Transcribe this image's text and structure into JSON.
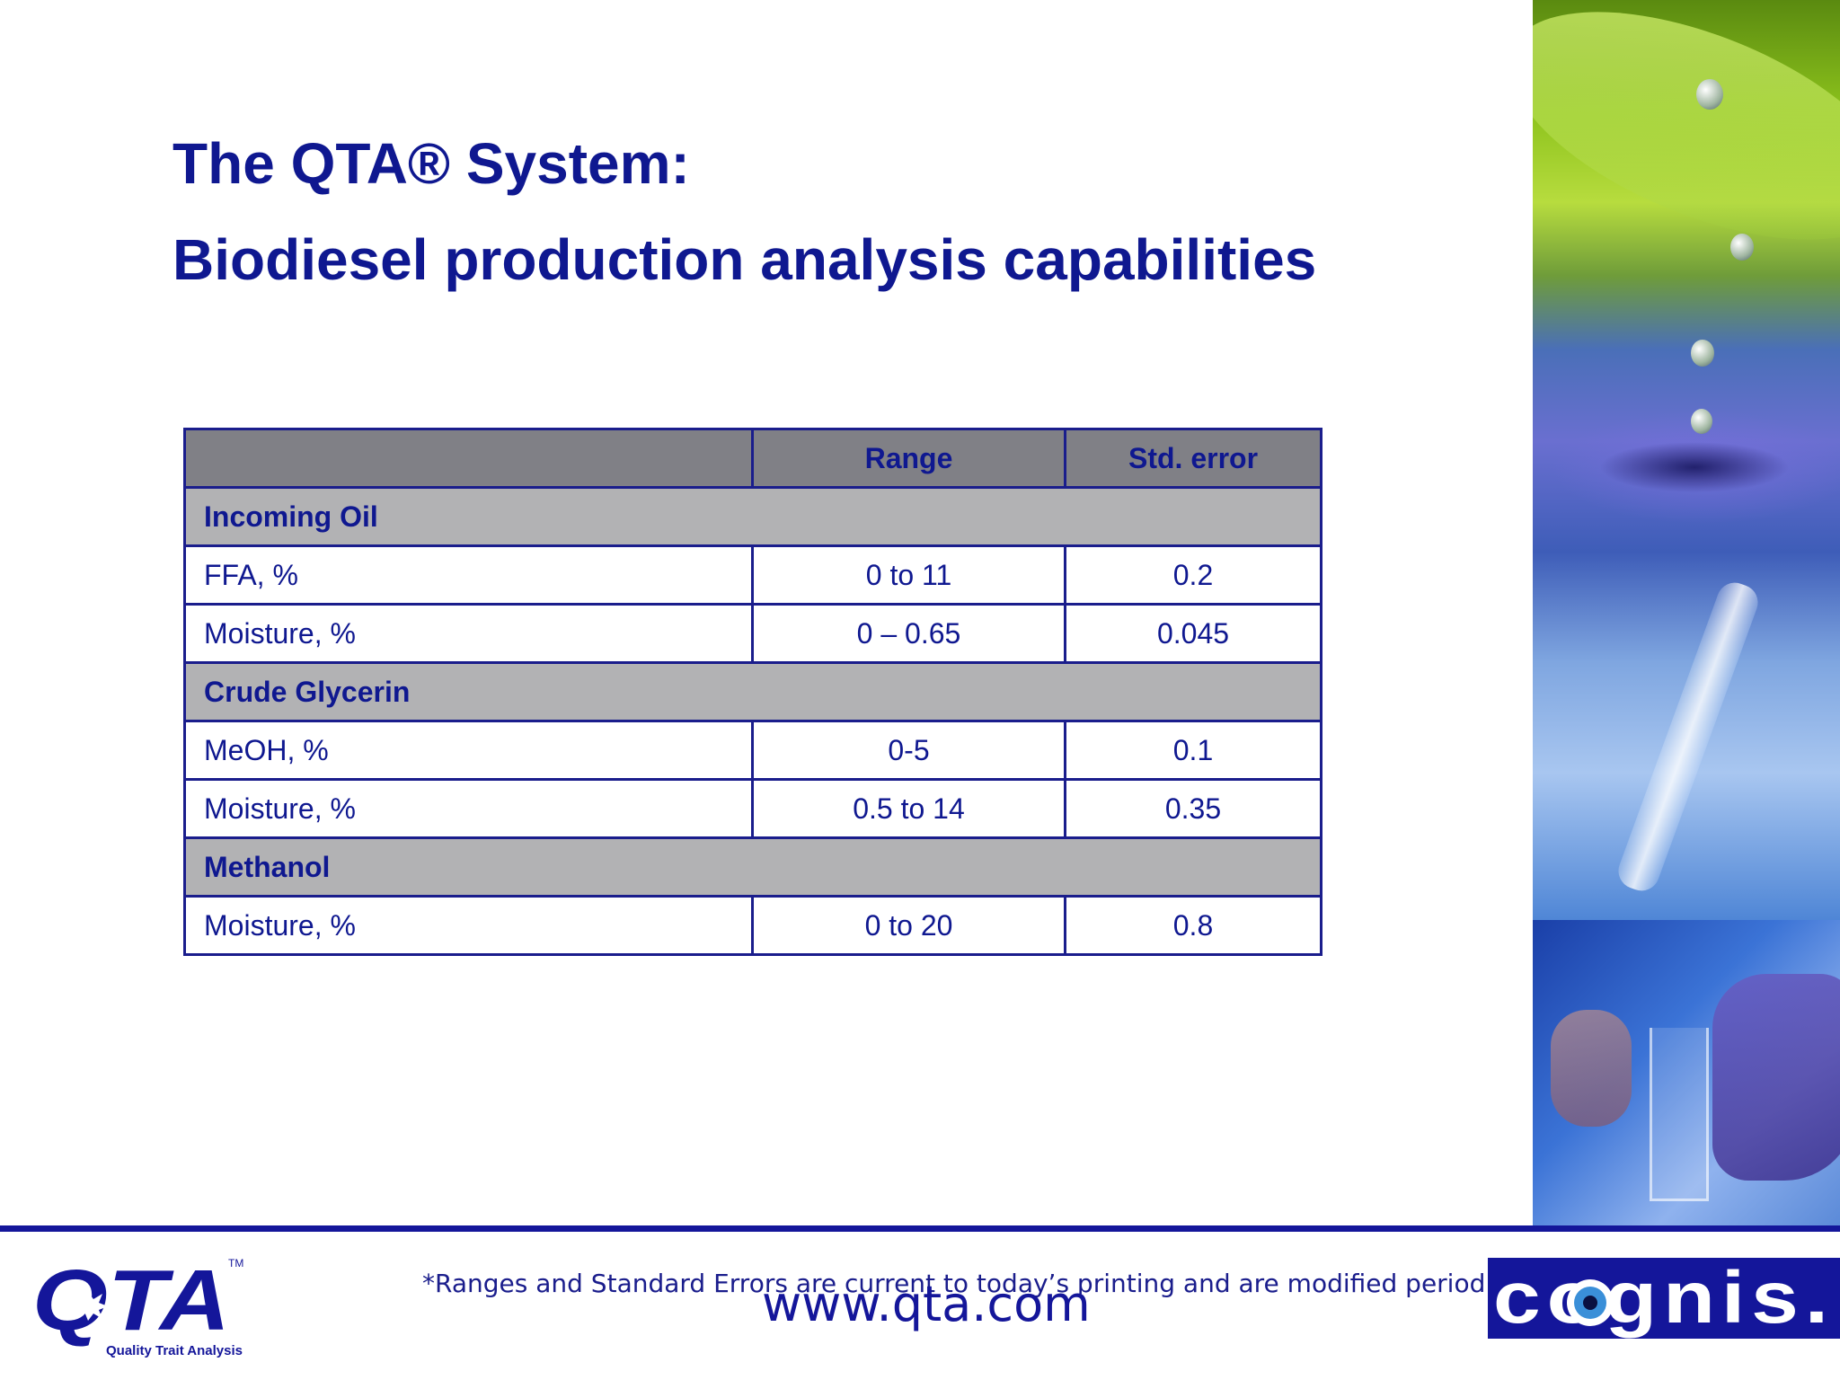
{
  "slide": {
    "title_line1": "The QTA® System:",
    "title_line2": "Biodiesel production analysis capabilities"
  },
  "table": {
    "headers": [
      "",
      "Range",
      "Std. error"
    ],
    "rows": [
      {
        "type": "section",
        "label": "Incoming Oil"
      },
      {
        "type": "data",
        "label": "FFA, %",
        "range": "0  to 11",
        "std_error": "0.2"
      },
      {
        "type": "data",
        "label": "Moisture, %",
        "range": "0 – 0.65",
        "std_error": "0.045"
      },
      {
        "type": "section",
        "label": "Crude Glycerin"
      },
      {
        "type": "data",
        "label": "MeOH, %",
        "range": "0-5",
        "std_error": "0.1"
      },
      {
        "type": "data",
        "label": "Moisture, %",
        "range": "0.5 to 14",
        "std_error": "0.35"
      },
      {
        "type": "section",
        "label": "Methanol"
      },
      {
        "type": "data",
        "label": "Moisture, %",
        "range": "0 to 20",
        "std_error": "0.8"
      }
    ]
  },
  "footer": {
    "footnote": "*Ranges and Standard Errors are current to today’s printing and are modified periodically.",
    "url": "www.qta.com",
    "qta_logo_text": "QTA",
    "qta_logo_tagline": "Quality Trait Analysis",
    "qta_logo_tm": "TM",
    "cognis_logo_text": "cognis."
  },
  "colors": {
    "title": "#0f1890",
    "table_border": "#1a1d8c",
    "header_bg": "#808086",
    "section_bg": "#b2b2b4",
    "footer_rule": "#14169a"
  }
}
